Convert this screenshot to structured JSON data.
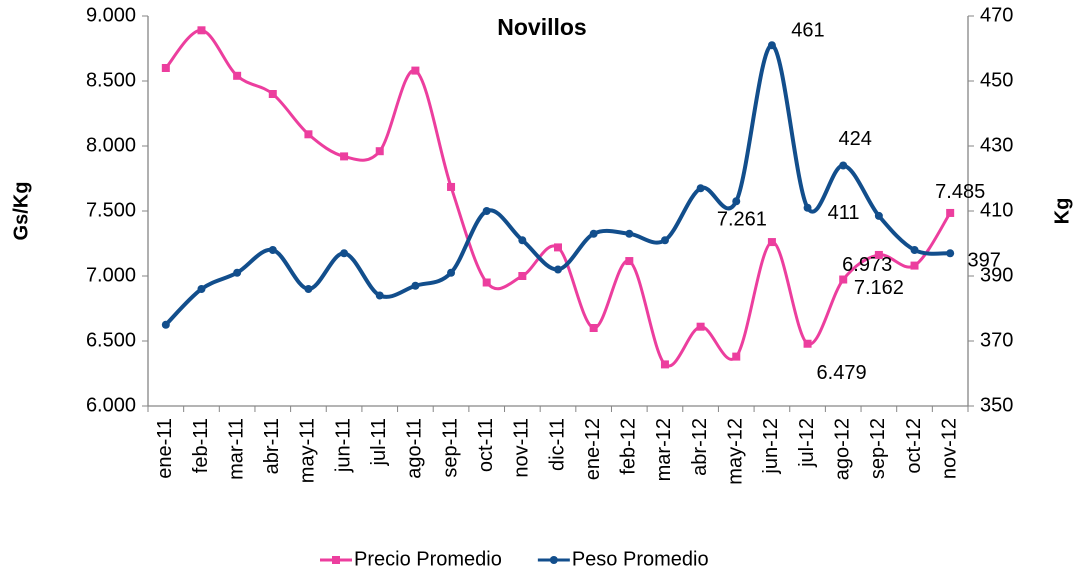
{
  "chart_data": {
    "type": "line",
    "title": "Novillos",
    "y_label": "Gs/Kg",
    "y2_label": "Kg",
    "categories": [
      "ene-11",
      "feb-11",
      "mar-11",
      "abr-11",
      "may-11",
      "jun-11",
      "jul-11",
      "ago-11",
      "sep-11",
      "oct-11",
      "nov-11",
      "dic-11",
      "ene-12",
      "feb-12",
      "mar-12",
      "abr-12",
      "may-12",
      "jun-12",
      "jul-12",
      "ago-12",
      "sep-12",
      "oct-12",
      "nov-12"
    ],
    "series": [
      {
        "name": "Precio Promedio",
        "color": "#ec3e9e",
        "marker": "square",
        "values": [
          8600,
          8890,
          8540,
          8400,
          8090,
          7920,
          7960,
          8580,
          7685,
          6950,
          7000,
          7220,
          6600,
          7115,
          6320,
          6610,
          6380,
          7261,
          6479,
          6973,
          7162,
          7080,
          7485
        ],
        "value_labels": [
          null,
          null,
          null,
          null,
          null,
          null,
          null,
          null,
          null,
          null,
          null,
          null,
          null,
          null,
          null,
          null,
          null,
          "7.261",
          "6.479",
          "6.973",
          "7.162",
          null,
          "7.485"
        ]
      },
      {
        "name": "Peso Promedio",
        "color": "#124e8c",
        "marker": "circle",
        "axis": "y2",
        "values": [
          375,
          386,
          391,
          398,
          386,
          397,
          384,
          387,
          391,
          410,
          401,
          392,
          403,
          403,
          401,
          417,
          413,
          461,
          411,
          424,
          408.5,
          398,
          397
        ],
        "value_labels": [
          null,
          null,
          null,
          null,
          null,
          null,
          null,
          null,
          null,
          null,
          null,
          null,
          null,
          null,
          null,
          null,
          null,
          "461",
          "411",
          "424",
          null,
          null,
          "397"
        ]
      }
    ],
    "ylim": [
      6000,
      9000
    ],
    "yticks": [
      {
        "value": 6000,
        "label": "6.000"
      },
      {
        "value": 6500,
        "label": "6.500"
      },
      {
        "value": 7000,
        "label": "7.000"
      },
      {
        "value": 7500,
        "label": "7.500"
      },
      {
        "value": 8000,
        "label": "8.000"
      },
      {
        "value": 8500,
        "label": "8.500"
      },
      {
        "value": 9000,
        "label": "9.000"
      }
    ],
    "y2lim": [
      350,
      470
    ],
    "y2ticks": [
      350,
      370,
      390,
      410,
      430,
      450,
      470
    ],
    "grid": false,
    "legend": "bottom",
    "smooth": true
  }
}
